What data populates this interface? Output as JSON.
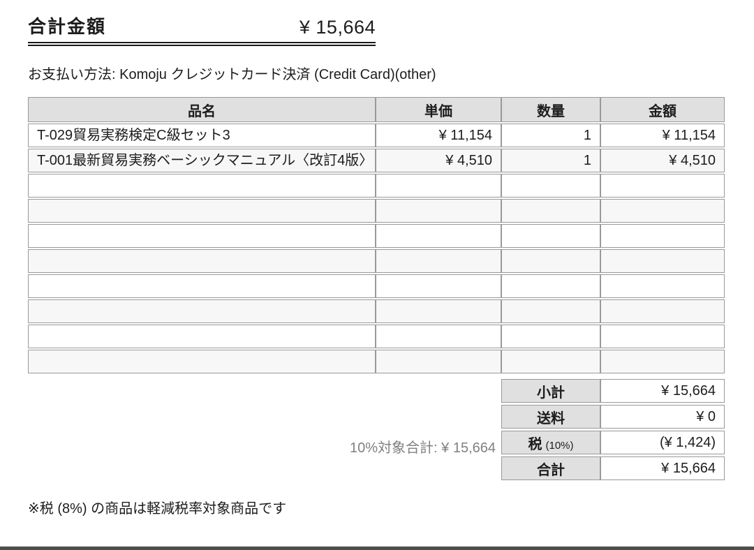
{
  "header": {
    "title": "合計金額",
    "amount": "¥ 15,664"
  },
  "payment": {
    "text": "お支払い方法: Komoju クレジットカード決済 (Credit Card)(other)"
  },
  "items_table": {
    "columns": [
      "品名",
      "単価",
      "数量",
      "金額"
    ],
    "rows": [
      {
        "name": "T-029貿易実務検定C級セット3",
        "unit_price": "¥ 11,154",
        "quantity": "1",
        "amount": "¥ 11,154"
      },
      {
        "name": "T-001最新貿易実務ベーシックマニュアル〈改訂4版〉",
        "unit_price": "¥ 4,510",
        "quantity": "1",
        "amount": "¥ 4,510"
      }
    ],
    "empty_row_count": 8
  },
  "summary": {
    "tax_target_note": "10%対象合計: ¥ 15,664",
    "rows": [
      {
        "label": "小計",
        "suffix": "",
        "value": "¥ 15,664"
      },
      {
        "label": "送料",
        "suffix": "",
        "value": "¥ 0"
      },
      {
        "label": "税",
        "suffix": "(10%)",
        "value": "(¥ 1,424)"
      },
      {
        "label": "合計",
        "suffix": "",
        "value": "¥ 15,664"
      }
    ]
  },
  "footer": {
    "note": "※税 (8%) の商品は軽減税率対象商品です"
  },
  "colors": {
    "header_bg": "#e0e0e0",
    "alt_row_bg": "#f7f7f7",
    "border": "#999999",
    "muted_text": "#808080",
    "bottom_rule": "#4d4d4d"
  }
}
